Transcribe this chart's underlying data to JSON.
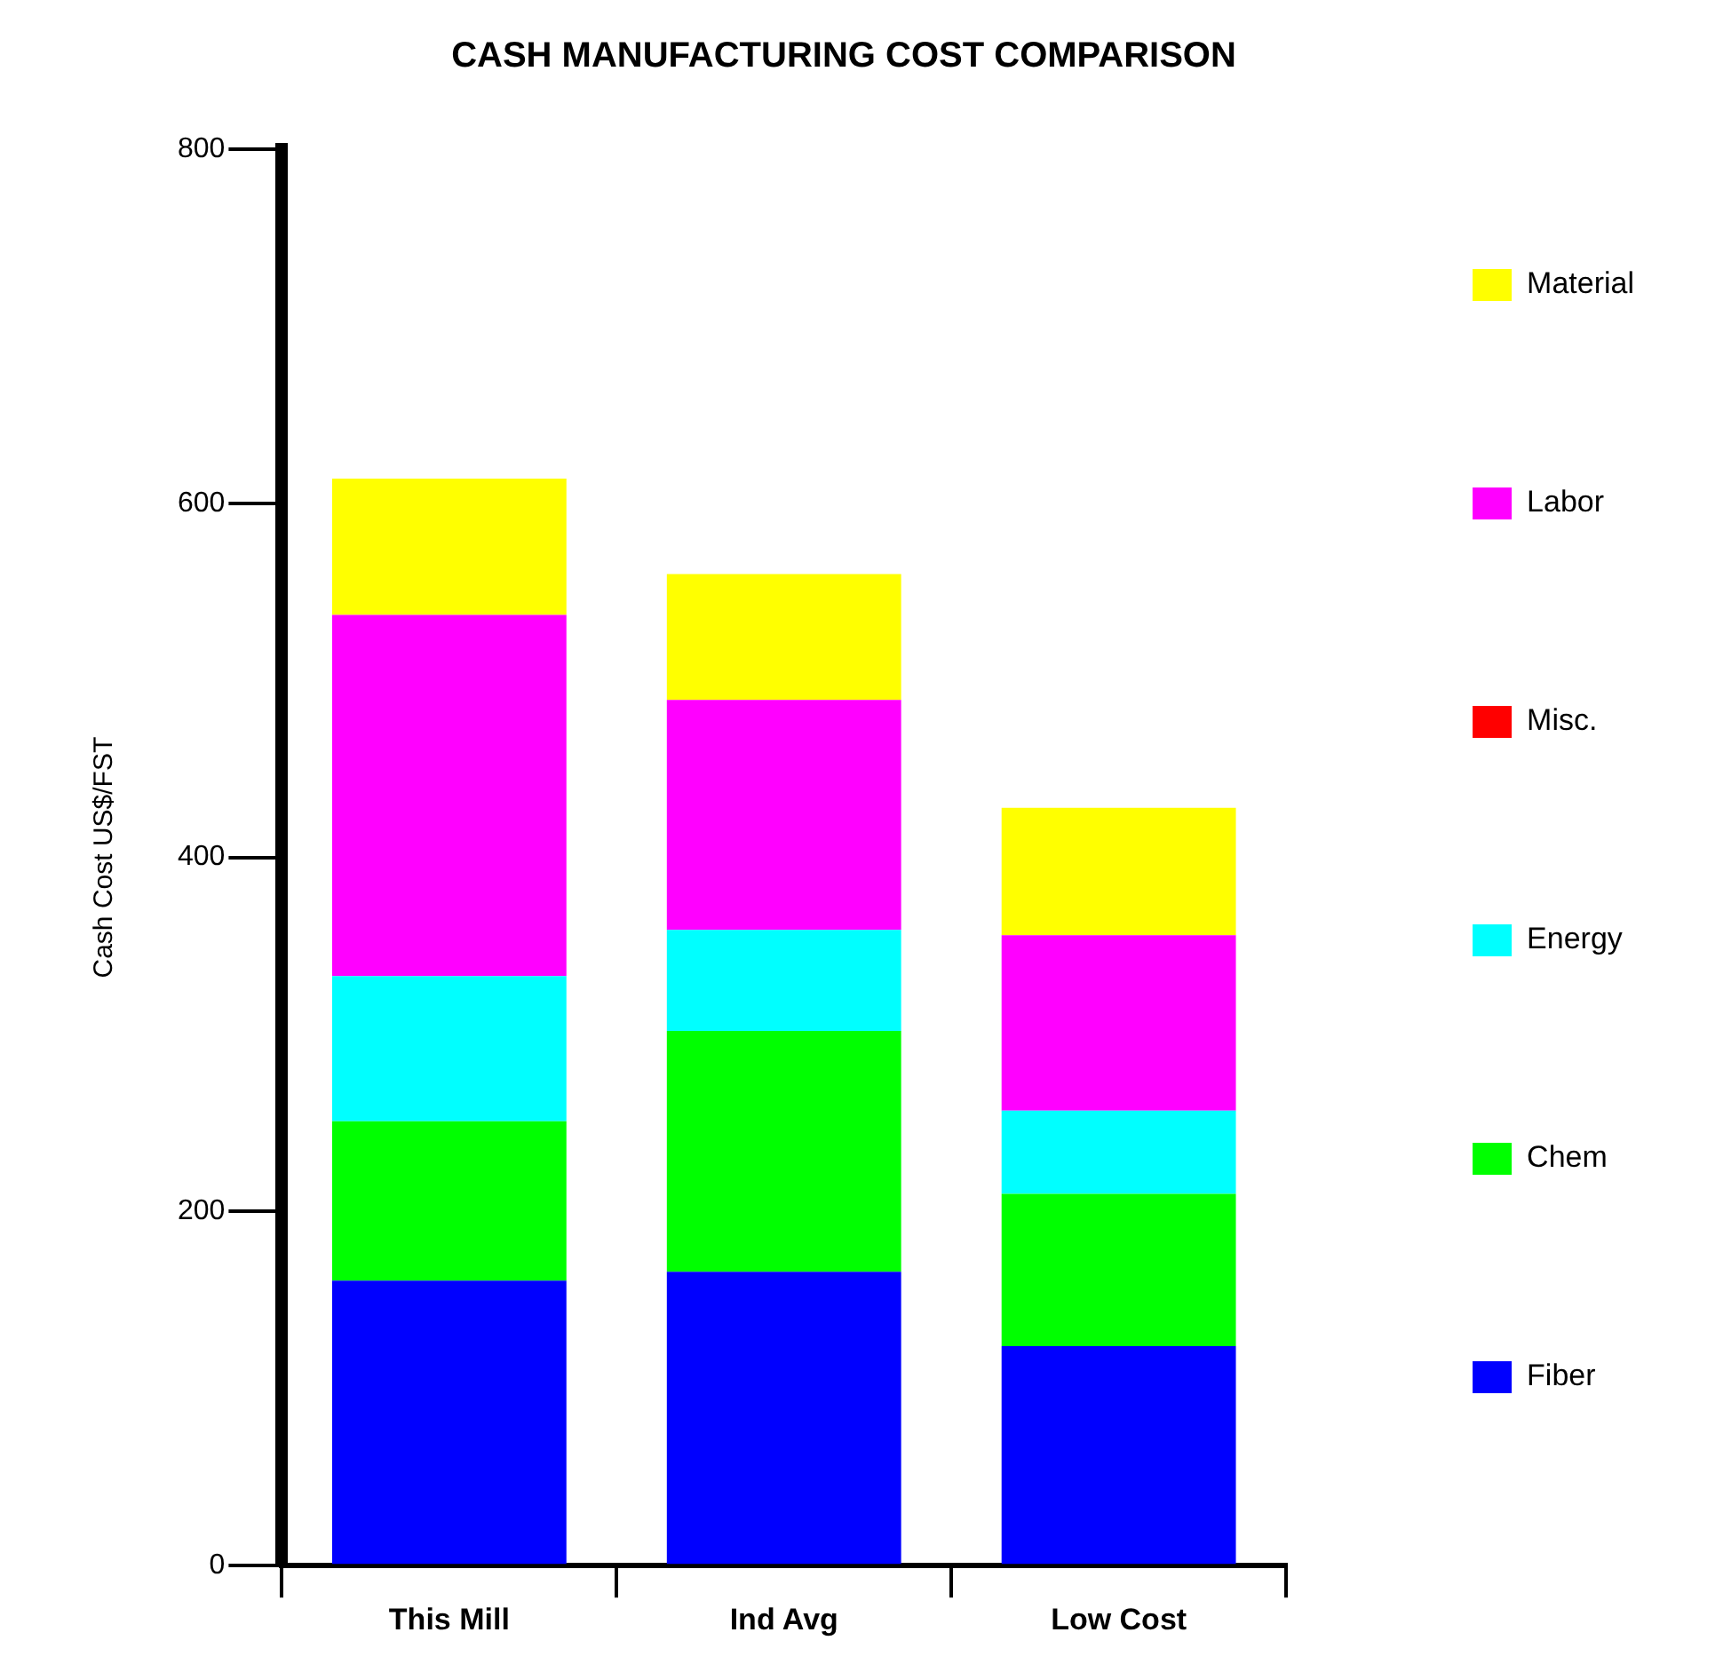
{
  "chart_data": {
    "type": "bar",
    "title": "CASH MANUFACTURING COST COMPARISON",
    "ylabel": "Cash Cost US$/FST",
    "categories": [
      "This Mill",
      "Ind Avg",
      "Low Cost"
    ],
    "stacked": true,
    "grid": false,
    "legend": "right",
    "ylim": [
      0,
      800
    ],
    "yticks": [
      0,
      200,
      400,
      600,
      800
    ],
    "series": [
      {
        "name": "Fiber",
        "color": "#0000ff",
        "values": [
          161,
          166,
          124
        ]
      },
      {
        "name": "Chem",
        "color": "#00ff00",
        "values": [
          90,
          136,
          86
        ]
      },
      {
        "name": "Energy",
        "color": "#00ffff",
        "values": [
          82,
          57,
          47
        ]
      },
      {
        "name": "Misc.",
        "color": "#ff0000",
        "values": [
          0,
          0,
          0
        ]
      },
      {
        "name": "Labor",
        "color": "#ff00ff",
        "values": [
          204,
          130,
          99
        ]
      },
      {
        "name": "Material",
        "color": "#ffff00",
        "values": [
          77,
          71,
          72
        ]
      }
    ]
  }
}
